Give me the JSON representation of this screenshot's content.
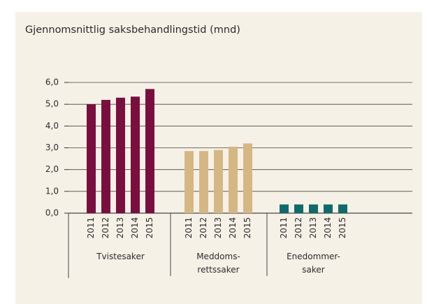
{
  "chart_data": {
    "type": "bar",
    "title": "Gjennomsnittlig saksbehandlingstid (mnd)",
    "categories": [
      [
        "Tvistesaker"
      ],
      [
        "Meddoms-",
        "rettssaker"
      ],
      [
        "Enedommer-",
        "saker"
      ]
    ],
    "colors": [
      "#7a0f3f",
      "#d5b784",
      "#0f6a6c"
    ],
    "series": [
      {
        "name": "2011",
        "values": [
          5.0,
          2.85,
          0.4
        ]
      },
      {
        "name": "2012",
        "values": [
          5.2,
          2.85,
          0.4
        ]
      },
      {
        "name": "2013",
        "values": [
          5.3,
          2.9,
          0.4
        ]
      },
      {
        "name": "2014",
        "values": [
          5.35,
          3.05,
          0.4
        ]
      },
      {
        "name": "2015",
        "values": [
          5.7,
          3.2,
          0.4
        ]
      }
    ],
    "ylim": [
      0,
      6
    ],
    "yticks": [
      {
        "value": 0,
        "label": "0,0"
      },
      {
        "value": 1,
        "label": "1,0"
      },
      {
        "value": 2,
        "label": "2,0"
      },
      {
        "value": 3,
        "label": "3,0"
      },
      {
        "value": 4,
        "label": "4,0"
      },
      {
        "value": 5,
        "label": "5,0"
      },
      {
        "value": 6,
        "label": "6,0"
      }
    ],
    "grid": true
  }
}
